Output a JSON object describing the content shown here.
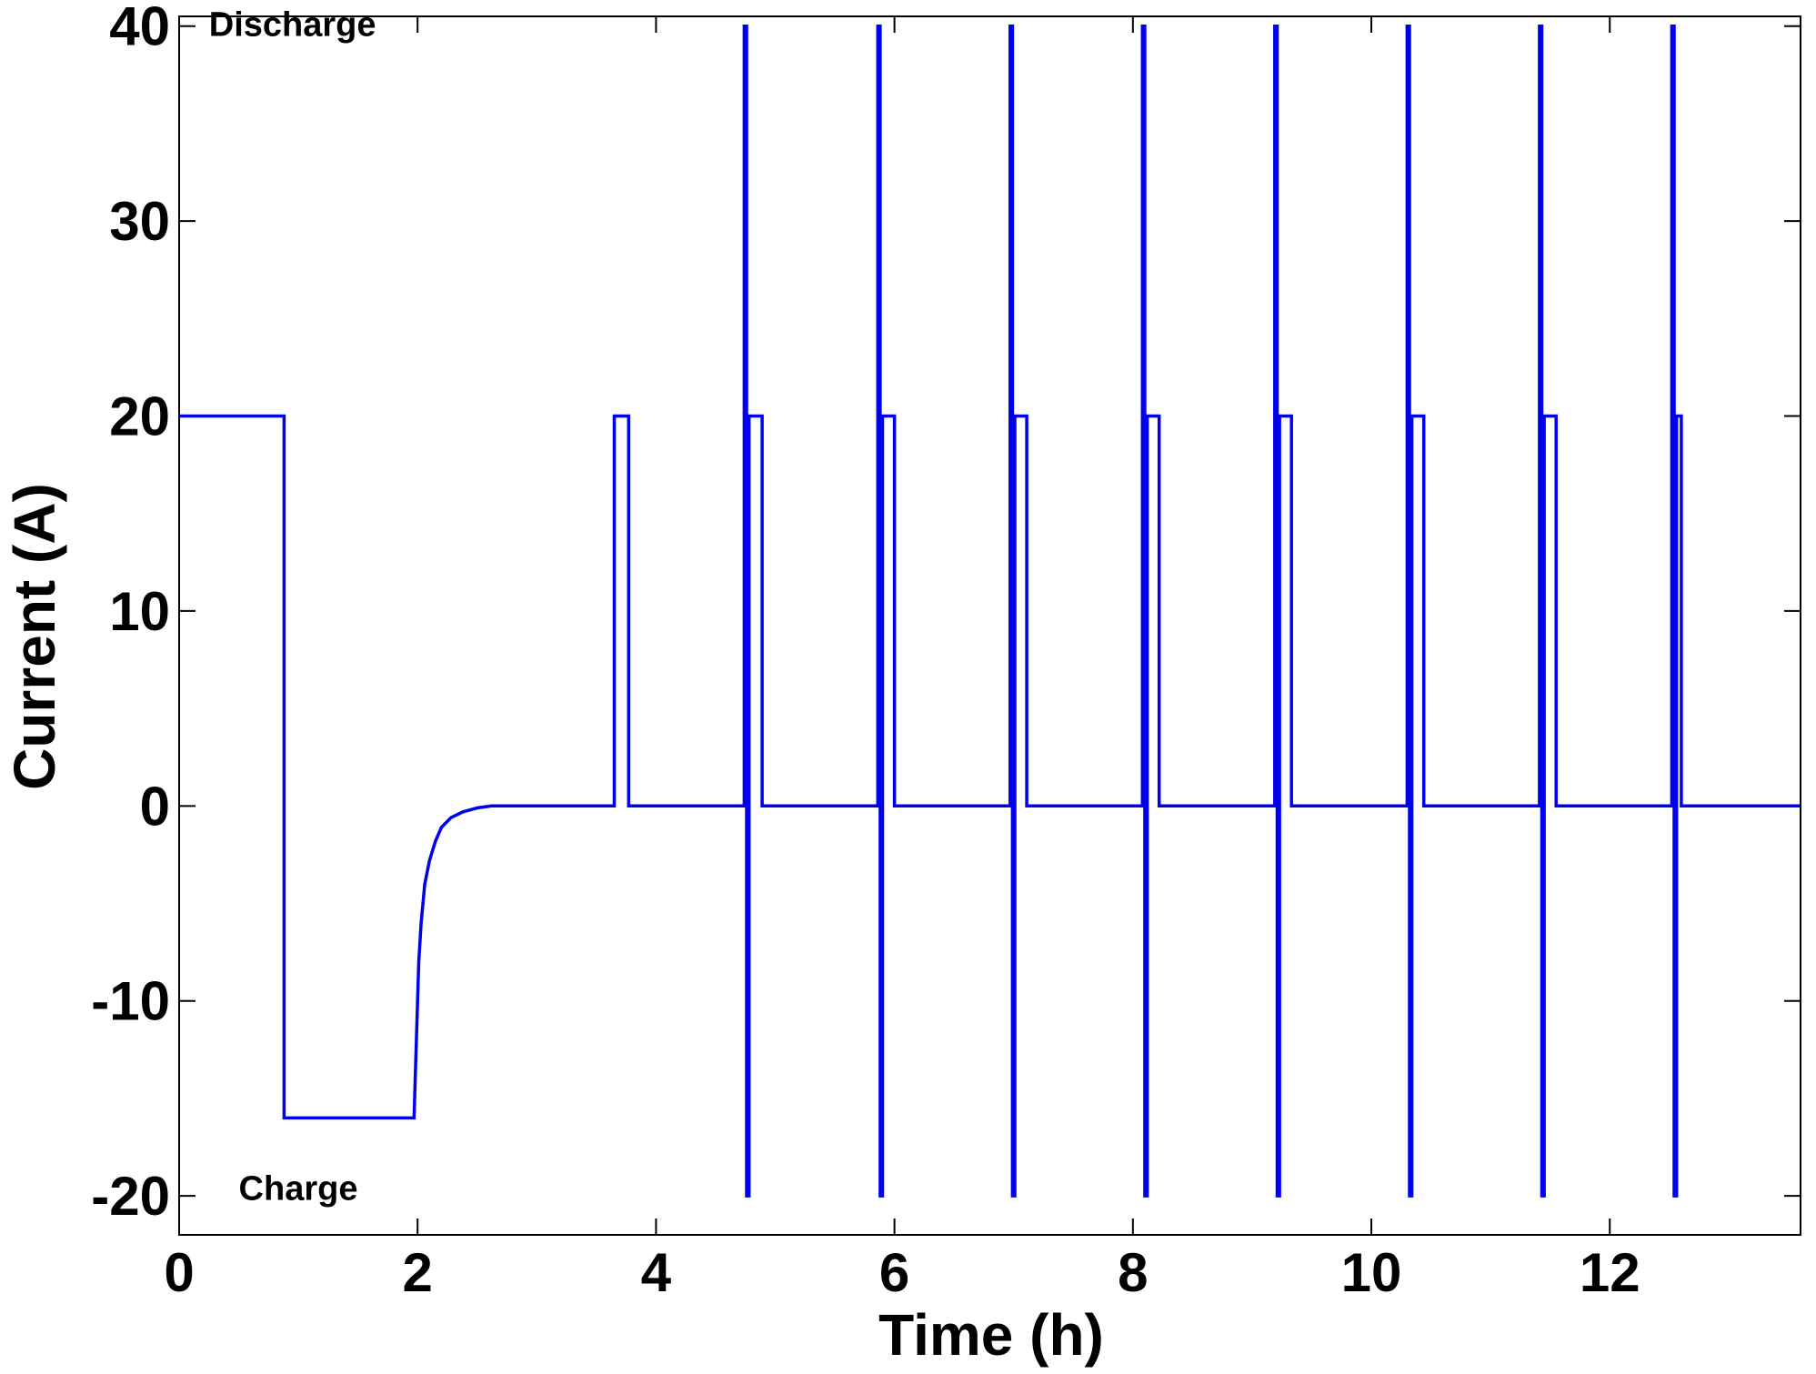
{
  "chart_data": {
    "type": "line",
    "xlabel": "Time (h)",
    "ylabel": "Current (A)",
    "xlim": [
      0,
      13.6
    ],
    "ylim": [
      -22,
      40.5
    ],
    "xticks": [
      0,
      2,
      4,
      6,
      8,
      10,
      12
    ],
    "yticks": [
      -20,
      -10,
      0,
      10,
      20,
      30,
      40
    ],
    "grid": false,
    "series_color": "#0000ee",
    "annotations": [
      {
        "text": "Discharge",
        "x": 0.25,
        "y": 39.5
      },
      {
        "text": "Charge",
        "x": 0.5,
        "y": -20.2
      }
    ],
    "series": [
      {
        "name": "",
        "steps": [
          [
            0.0,
            20
          ],
          [
            0.88,
            20
          ],
          [
            0.88,
            -16
          ],
          [
            1.97,
            -16
          ],
          [
            3.65,
            0
          ],
          [
            3.65,
            20
          ],
          [
            3.77,
            20
          ],
          [
            3.77,
            0
          ],
          [
            4.74,
            0
          ],
          [
            4.74,
            40
          ],
          [
            4.76,
            40
          ],
          [
            4.76,
            -20
          ],
          [
            4.78,
            -20
          ],
          [
            4.78,
            20
          ],
          [
            4.89,
            20
          ],
          [
            4.89,
            0
          ],
          [
            5.86,
            0
          ],
          [
            5.86,
            40
          ],
          [
            5.88,
            40
          ],
          [
            5.88,
            -20
          ],
          [
            5.9,
            -20
          ],
          [
            5.9,
            20
          ],
          [
            6.0,
            20
          ],
          [
            6.0,
            0
          ],
          [
            6.97,
            0
          ],
          [
            6.97,
            40
          ],
          [
            6.99,
            40
          ],
          [
            6.99,
            -20
          ],
          [
            7.01,
            -20
          ],
          [
            7.01,
            20
          ],
          [
            7.11,
            20
          ],
          [
            7.11,
            0
          ],
          [
            8.08,
            0
          ],
          [
            8.08,
            40
          ],
          [
            8.1,
            40
          ],
          [
            8.1,
            -20
          ],
          [
            8.12,
            -20
          ],
          [
            8.12,
            20
          ],
          [
            8.22,
            20
          ],
          [
            8.22,
            0
          ],
          [
            9.19,
            0
          ],
          [
            9.19,
            40
          ],
          [
            9.21,
            40
          ],
          [
            9.21,
            -20
          ],
          [
            9.23,
            -20
          ],
          [
            9.23,
            20
          ],
          [
            9.33,
            20
          ],
          [
            9.33,
            0
          ],
          [
            10.3,
            0
          ],
          [
            10.3,
            40
          ],
          [
            10.32,
            40
          ],
          [
            10.32,
            -20
          ],
          [
            10.34,
            -20
          ],
          [
            10.34,
            20
          ],
          [
            10.44,
            20
          ],
          [
            10.44,
            0
          ],
          [
            11.41,
            0
          ],
          [
            11.41,
            40
          ],
          [
            11.43,
            40
          ],
          [
            11.43,
            -20
          ],
          [
            11.45,
            -20
          ],
          [
            11.45,
            20
          ],
          [
            11.55,
            20
          ],
          [
            11.55,
            0
          ],
          [
            12.52,
            0
          ],
          [
            12.52,
            40
          ],
          [
            12.54,
            40
          ],
          [
            12.54,
            -20
          ],
          [
            12.56,
            -20
          ],
          [
            12.56,
            20
          ],
          [
            12.6,
            20
          ],
          [
            12.6,
            0
          ],
          [
            13.6,
            0
          ]
        ],
        "charge_taper": [
          [
            1.97,
            -16
          ],
          [
            1.99,
            -12
          ],
          [
            2.01,
            -8
          ],
          [
            2.03,
            -6
          ],
          [
            2.06,
            -4
          ],
          [
            2.1,
            -2.8
          ],
          [
            2.15,
            -1.8
          ],
          [
            2.2,
            -1.1
          ],
          [
            2.28,
            -0.6
          ],
          [
            2.38,
            -0.3
          ],
          [
            2.5,
            -0.1
          ],
          [
            2.62,
            0
          ]
        ]
      }
    ]
  }
}
